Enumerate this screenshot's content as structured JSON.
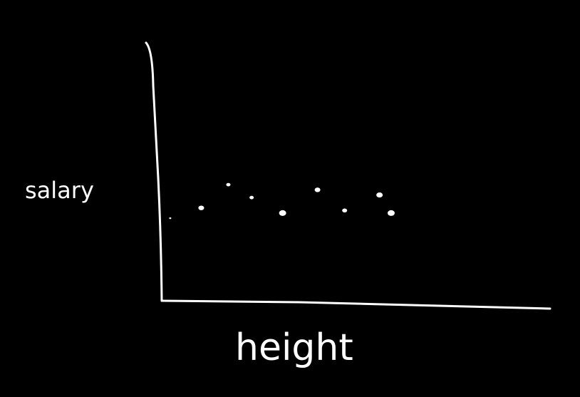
{
  "colors": {
    "background": "#000000",
    "ink": "#ffffff"
  },
  "chart_data": {
    "type": "scatter",
    "xlabel": "height",
    "ylabel": "salary",
    "grid": false,
    "legend": "none",
    "xlim": [
      0,
      10
    ],
    "ylim": [
      0,
      10
    ],
    "series": [
      {
        "points": [
          {
            "x": 0.2,
            "y": 3.2
          },
          {
            "x": 1.0,
            "y": 3.6
          },
          {
            "x": 1.7,
            "y": 4.5
          },
          {
            "x": 2.3,
            "y": 4.0
          },
          {
            "x": 3.1,
            "y": 3.4
          },
          {
            "x": 4.0,
            "y": 4.3
          },
          {
            "x": 4.7,
            "y": 3.5
          },
          {
            "x": 5.6,
            "y": 4.1
          },
          {
            "x": 5.9,
            "y": 3.4
          }
        ]
      }
    ]
  }
}
